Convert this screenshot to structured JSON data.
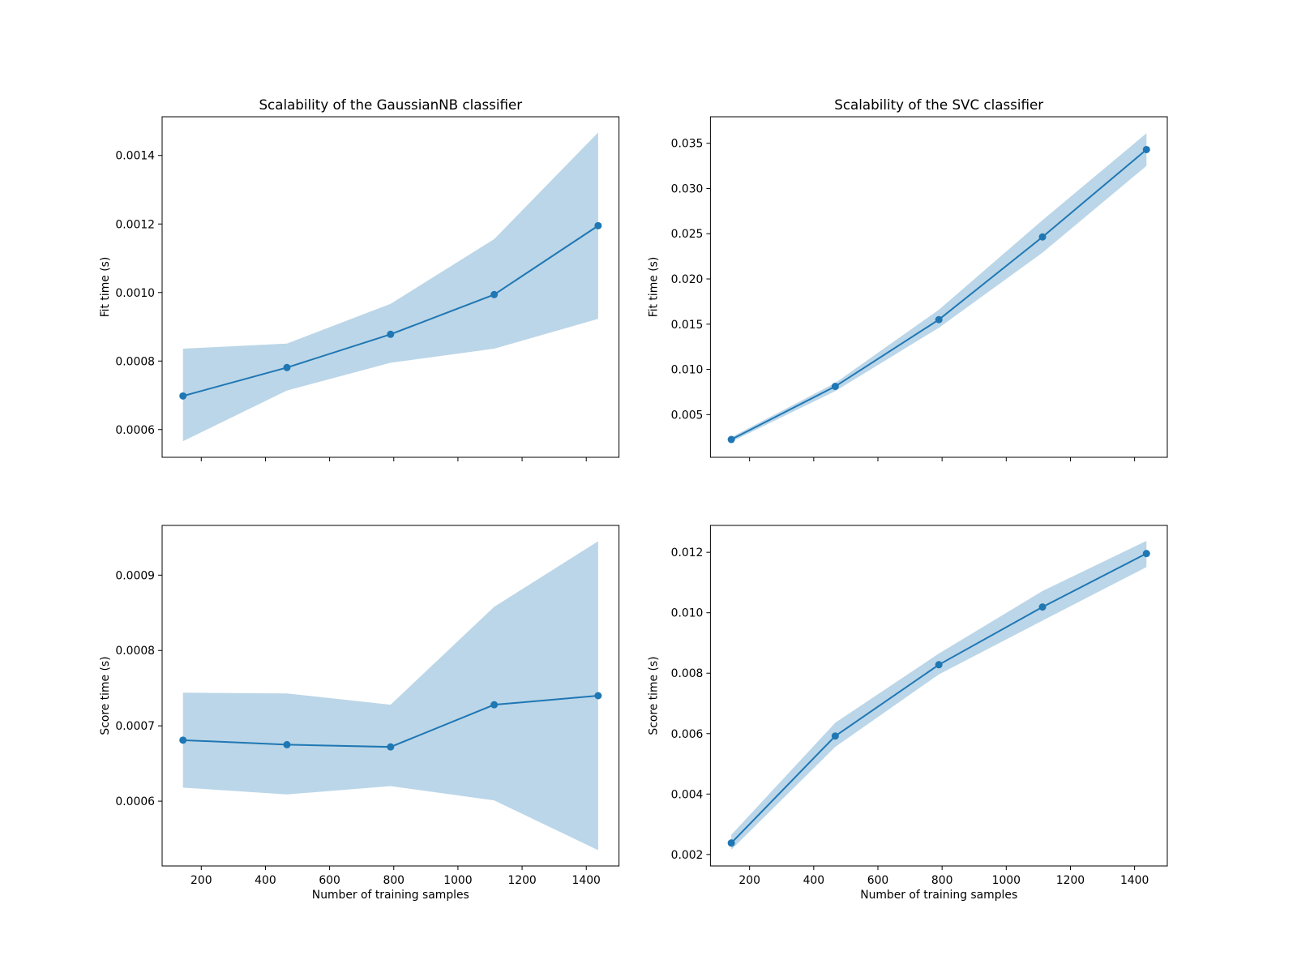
{
  "chart_data": [
    {
      "type": "line",
      "title": "Scalability of the GaussianNB classifier",
      "xlabel": "",
      "ylabel": "Fit time (s)",
      "x": [
        143,
        467,
        790,
        1113,
        1437
      ],
      "y": [
        0.000698,
        0.000781,
        0.000878,
        0.000994,
        0.001195
      ],
      "band_upper": [
        0.000836,
        0.000851,
        0.000967,
        0.001156,
        0.001467
      ],
      "band_lower": [
        0.000566,
        0.000714,
        0.000795,
        0.000836,
        0.000923
      ],
      "xlim": [
        78,
        1502
      ],
      "ylim": [
        0.000519,
        0.001513
      ],
      "xticks": [
        200,
        400,
        600,
        800,
        1000,
        1200,
        1400
      ],
      "xtick_labels": [],
      "yticks": [
        0.0006,
        0.0008,
        0.001,
        0.0012,
        0.0014
      ],
      "ytick_labels": [
        "0.0006",
        "0.0008",
        "0.0010",
        "0.0012",
        "0.0014"
      ],
      "color": "#1f77b4"
    },
    {
      "type": "line",
      "title": "Scalability of the SVC classifier",
      "xlabel": "",
      "ylabel": "Fit time (s)",
      "x": [
        143,
        467,
        790,
        1113,
        1437
      ],
      "y": [
        0.00225,
        0.00812,
        0.0155,
        0.02464,
        0.0343
      ],
      "band_upper": [
        0.0025,
        0.0085,
        0.0166,
        0.0265,
        0.0361
      ],
      "band_lower": [
        0.002,
        0.0076,
        0.0146,
        0.0229,
        0.0325
      ],
      "xlim": [
        78,
        1502
      ],
      "ylim": [
        0.00028,
        0.03793
      ],
      "xticks": [
        200,
        400,
        600,
        800,
        1000,
        1200,
        1400
      ],
      "xtick_labels": [],
      "yticks": [
        0.005,
        0.01,
        0.015,
        0.02,
        0.025,
        0.03,
        0.035
      ],
      "ytick_labels": [
        "0.005",
        "0.010",
        "0.015",
        "0.020",
        "0.025",
        "0.030",
        "0.035"
      ],
      "color": "#1f77b4"
    },
    {
      "type": "line",
      "title": "",
      "xlabel": "Number of training samples",
      "ylabel": "Score time (s)",
      "x": [
        143,
        467,
        790,
        1113,
        1437
      ],
      "y": [
        0.000681,
        0.000675,
        0.000672,
        0.000728,
        0.00074
      ],
      "band_upper": [
        0.000744,
        0.000743,
        0.000728,
        0.000858,
        0.000945
      ],
      "band_lower": [
        0.000618,
        0.000609,
        0.00062,
        0.000601,
        0.000535
      ],
      "xlim": [
        78,
        1502
      ],
      "ylim": [
        0.000514,
        0.000966
      ],
      "xticks": [
        200,
        400,
        600,
        800,
        1000,
        1200,
        1400
      ],
      "xtick_labels": [
        "200",
        "400",
        "600",
        "800",
        "1000",
        "1200",
        "1400"
      ],
      "yticks": [
        0.0006,
        0.0007,
        0.0008,
        0.0009
      ],
      "ytick_labels": [
        "0.0006",
        "0.0007",
        "0.0008",
        "0.0009"
      ],
      "color": "#1f77b4"
    },
    {
      "type": "line",
      "title": "",
      "xlabel": "Number of training samples",
      "ylabel": "Score time (s)",
      "x": [
        143,
        467,
        790,
        1113,
        1437
      ],
      "y": [
        0.00238,
        0.00592,
        0.00828,
        0.01019,
        0.01196
      ],
      "band_upper": [
        0.00265,
        0.00636,
        0.00865,
        0.01072,
        0.01238
      ],
      "band_lower": [
        0.00216,
        0.00556,
        0.00796,
        0.00974,
        0.01151
      ],
      "xlim": [
        78,
        1502
      ],
      "ylim": [
        0.00162,
        0.01289
      ],
      "xticks": [
        200,
        400,
        600,
        800,
        1000,
        1200,
        1400
      ],
      "xtick_labels": [
        "200",
        "400",
        "600",
        "800",
        "1000",
        "1200",
        "1400"
      ],
      "yticks": [
        0.002,
        0.004,
        0.006,
        0.008,
        0.01,
        0.012
      ],
      "ytick_labels": [
        "0.002",
        "0.004",
        "0.006",
        "0.008",
        "0.010",
        "0.012"
      ],
      "color": "#1f77b4"
    }
  ]
}
